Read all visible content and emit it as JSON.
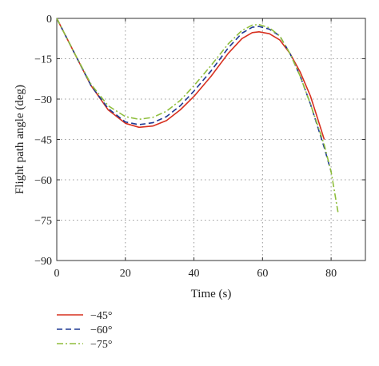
{
  "chart_data": {
    "type": "line",
    "title": "",
    "xlabel": "Time (s)",
    "ylabel": "Flight path angle (deg)",
    "xlim": [
      0,
      90
    ],
    "ylim": [
      -90,
      0
    ],
    "xticks": [
      0,
      20,
      40,
      60,
      80
    ],
    "yticks": [
      0,
      -15,
      -30,
      -45,
      -60,
      -75,
      -90
    ],
    "xtick_labels": [
      "0",
      "20",
      "40",
      "60",
      "80"
    ],
    "ytick_labels": [
      "0",
      "−15",
      "−30",
      "−45",
      "−60",
      "−75",
      "−90"
    ],
    "grid": true,
    "grid_style": "dotted",
    "legend_position": "below-left",
    "series": [
      {
        "name": "−45°",
        "color": "#d7301f",
        "dash": "solid",
        "x": [
          0,
          5,
          10,
          15,
          20,
          24,
          28,
          32,
          36,
          40,
          45,
          50,
          54,
          57,
          59,
          62,
          65,
          68,
          71,
          74,
          76,
          78
        ],
        "y": [
          0,
          -12.5,
          -25,
          -34,
          -39,
          -40.5,
          -40,
          -38,
          -34,
          -29,
          -21.5,
          -13,
          -7.5,
          -5.3,
          -5,
          -5.7,
          -8,
          -13,
          -20,
          -29,
          -37,
          -45
        ]
      },
      {
        "name": "−60°",
        "color": "#1f3a93",
        "dash": "dashed",
        "x": [
          0,
          5,
          10,
          15,
          20,
          24,
          28,
          32,
          36,
          40,
          45,
          50,
          54,
          57,
          59,
          62,
          65,
          68,
          71,
          74,
          76,
          78,
          80
        ],
        "y": [
          0,
          -12.5,
          -25,
          -33.5,
          -38.5,
          -39.5,
          -38.8,
          -36.5,
          -32.5,
          -27,
          -19.5,
          -11,
          -5.5,
          -3.3,
          -3,
          -4,
          -6.5,
          -13,
          -21.5,
          -32,
          -40,
          -48,
          -57
        ]
      },
      {
        "name": "−75°",
        "color": "#8fbe3c",
        "dash": "dashdot",
        "x": [
          0,
          5,
          10,
          15,
          20,
          24,
          28,
          32,
          36,
          40,
          45,
          50,
          54,
          57,
          59,
          62,
          65,
          68,
          71,
          74,
          76,
          78,
          80,
          82
        ],
        "y": [
          0,
          -12.5,
          -24.5,
          -32.5,
          -36.5,
          -37.5,
          -36.8,
          -34.5,
          -30.5,
          -25,
          -17.5,
          -9.5,
          -4.5,
          -2.5,
          -2.3,
          -3.5,
          -6.5,
          -13,
          -21.5,
          -32,
          -39.5,
          -47,
          -57,
          -72
        ]
      }
    ]
  }
}
